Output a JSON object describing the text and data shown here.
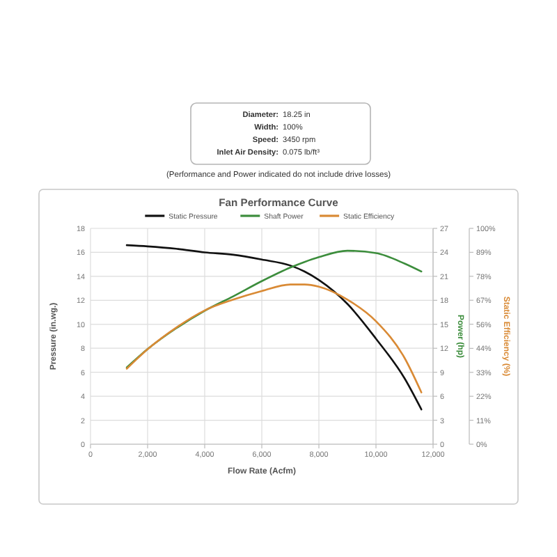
{
  "chart_data": [
    {
      "type": "other",
      "annotations": [
        "Diameter: 18.25 in",
        "Width: 100%",
        "Speed: 3450 rpm",
        "Inlet Air Density: 0.075 lb/ft³"
      ]
    },
    {
      "type": "line",
      "title": "Fan Performance Curve",
      "xlabel": "Flow Rate (Acfm)",
      "ylabel": "Pressure (in.wg.)",
      "y2label": "Power (hp)",
      "y3label": "Static Efficiency (%)",
      "annotations": [
        "(Performance and Power indicated do not include drive losses)"
      ],
      "legend": "top",
      "grid": true,
      "x": [
        1270,
        2000,
        3000,
        4000,
        5000,
        6000,
        7000,
        7500,
        8000,
        9000,
        10000,
        11000,
        11590
      ],
      "xlim": [
        0,
        12000
      ],
      "xticks": [
        0,
        {
          "value": 2000,
          "label": "2,000"
        },
        {
          "value": 4000,
          "label": "4,000"
        },
        {
          "value": 6000,
          "label": "6,000"
        },
        {
          "value": 8000,
          "label": "8,000"
        },
        {
          "value": 10000,
          "label": "10,000"
        },
        {
          "value": 12000,
          "label": "12,000"
        }
      ],
      "ylim": [
        0,
        18
      ],
      "yticks": [
        0,
        2,
        4,
        6,
        8,
        10,
        12,
        14,
        16,
        18
      ],
      "y2lim": [
        0,
        27
      ],
      "y2ticks": [
        0,
        3,
        6,
        9,
        12,
        15,
        18,
        21,
        24,
        27
      ],
      "y3lim": [
        0,
        100
      ],
      "y3ticks": [
        {
          "value": 0,
          "label": "0%"
        },
        {
          "value": 11.1,
          "label": "11%"
        },
        {
          "value": 22.2,
          "label": "22%"
        },
        {
          "value": 33.3,
          "label": "33%"
        },
        {
          "value": 44.4,
          "label": "44%"
        },
        {
          "value": 55.6,
          "label": "56%"
        },
        {
          "value": 66.7,
          "label": "67%"
        },
        {
          "value": 77.8,
          "label": "78%"
        },
        {
          "value": 88.9,
          "label": "89%"
        },
        {
          "value": 100,
          "label": "100%"
        }
      ],
      "series": [
        {
          "name": "Static Pressure",
          "color": "#111111",
          "values": [
            16.6,
            16.5,
            16.3,
            16.0,
            15.8,
            15.4,
            14.9,
            14.4,
            13.7,
            11.7,
            8.8,
            5.5,
            2.9
          ]
        },
        {
          "name": "Shaft Power",
          "color": "#3c8d3c",
          "axis": "y2",
          "values": [
            9.6,
            11.9,
            14.5,
            16.7,
            18.5,
            20.4,
            22.1,
            22.8,
            23.4,
            24.2,
            23.9,
            22.6,
            21.6
          ]
        },
        {
          "name": "Static Efficiency",
          "color": "#d98a35",
          "axis": "y3",
          "values": [
            35,
            44,
            54,
            62,
            67,
            71,
            74,
            74,
            73,
            67,
            57,
            40,
            24
          ]
        }
      ]
    }
  ]
}
